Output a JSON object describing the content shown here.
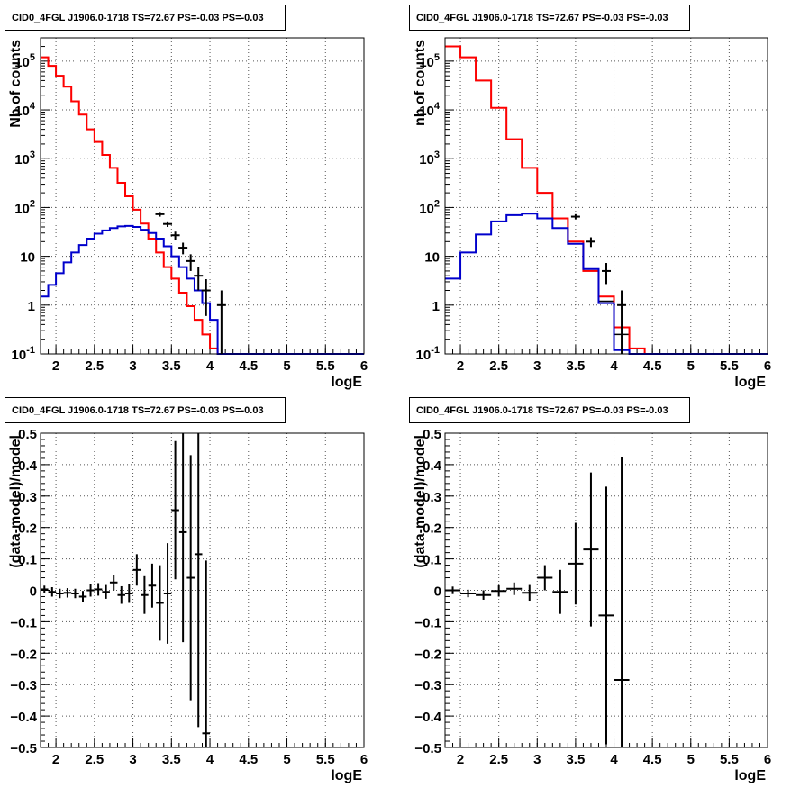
{
  "colors": {
    "data": "#000000",
    "total_model": "#ff0000",
    "component": "#0000cc",
    "grid": "#555555"
  },
  "chart_data": [
    {
      "type": "line",
      "title": "CID0_4FGL J1906.0-1718 TS=72.67 PS=-0.03 PS=-0.03",
      "xlabel": "logE",
      "ylabel": "Nb of counts",
      "log_y": true,
      "xlim": [
        1.8,
        6.0
      ],
      "ylim": [
        0.1,
        300000
      ],
      "grid": true,
      "x_ticks": [
        "2",
        "2.5",
        "3",
        "3.5",
        "4",
        "4.5",
        "5",
        "5.5",
        "6"
      ],
      "y_ticks": [
        "10^-1",
        "1",
        "10",
        "10^2",
        "10^3",
        "10^4",
        "10^5"
      ],
      "bin_edges": [
        1.8,
        1.9,
        2.0,
        2.1,
        2.2,
        2.3,
        2.4,
        2.5,
        2.6,
        2.7,
        2.8,
        2.9,
        3.0,
        3.1,
        3.2,
        3.3,
        3.4,
        3.5,
        3.6,
        3.7,
        3.8,
        3.9,
        4.0,
        4.1,
        4.2,
        4.3,
        4.4,
        4.5,
        4.6,
        4.7,
        4.8,
        4.9,
        5.0,
        5.1,
        5.2,
        5.3,
        5.4,
        5.5,
        5.6,
        5.7,
        5.8,
        5.9,
        6.0
      ],
      "series": [
        {
          "values": [
            120000,
            80000,
            50000,
            30000,
            15000,
            8000,
            4000,
            2200,
            1200,
            650,
            320,
            170,
            90,
            47,
            23,
            12,
            6,
            3.5,
            1.8,
            0.95,
            0.5,
            0.25,
            0.13,
            0.1,
            0.1,
            0.1,
            0.1,
            0.1,
            0.1,
            0.1,
            0.1,
            0.1,
            0.1,
            0.1,
            0.1,
            0.1,
            0.1,
            0.1,
            0.1,
            0.1,
            0.1,
            0.1
          ]
        },
        {
          "values": [
            120000,
            80000,
            50000,
            30000,
            15000,
            8000,
            4000,
            2200,
            1200,
            650,
            320,
            170,
            90,
            47,
            23,
            12,
            6,
            3.5,
            1.8,
            0.95,
            0.5,
            0.25,
            0.13,
            0.1,
            0.1,
            0.1,
            0.1,
            0.1,
            0.1,
            0.1,
            0.1,
            0.1,
            0.1,
            0.1,
            0.1,
            0.1,
            0.1,
            0.1,
            0.1,
            0.1,
            0.1,
            0.1
          ]
        },
        {
          "values": [
            1.5,
            2.6,
            4.5,
            7.5,
            12,
            17,
            23,
            29,
            34,
            38,
            41,
            42,
            40,
            35,
            30,
            23,
            16,
            10,
            6,
            3.5,
            2,
            1.1,
            0.5,
            0.1,
            0.1,
            0.1,
            0.1,
            0.1,
            0.1,
            0.1,
            0.1,
            0.1,
            0.1,
            0.1,
            0.1,
            0.1,
            0.1,
            0.1,
            0.1,
            0.1,
            0.1,
            0.1
          ]
        }
      ],
      "data_points": [
        {
          "x": 3.35,
          "y": 73,
          "yerr": [
            8,
            8
          ]
        },
        {
          "x": 3.45,
          "y": 46,
          "yerr": [
            6,
            6
          ]
        },
        {
          "x": 3.55,
          "y": 27,
          "yerr": [
            5,
            5
          ]
        },
        {
          "x": 3.65,
          "y": 15,
          "yerr": [
            4,
            4
          ]
        },
        {
          "x": 3.75,
          "y": 8,
          "yerr": [
            3,
            3
          ]
        },
        {
          "x": 3.85,
          "y": 4,
          "yerr": [
            2,
            2
          ]
        },
        {
          "x": 3.95,
          "y": 2,
          "yerr": [
            1.4,
            1.4
          ]
        },
        {
          "x": 4.15,
          "y": 1,
          "yerr": [
            0.9,
            1
          ]
        }
      ]
    },
    {
      "type": "line",
      "title": "CID0_4FGL J1906.0-1718 TS=72.67 PS=-0.03 PS=-0.03",
      "xlabel": "logE",
      "ylabel": "nb of counts",
      "log_y": true,
      "xlim": [
        1.8,
        6.0
      ],
      "ylim": [
        0.1,
        300000
      ],
      "grid": true,
      "x_ticks": [
        "2",
        "2.5",
        "3",
        "3.5",
        "4",
        "4.5",
        "5",
        "5.5",
        "6"
      ],
      "y_ticks": [
        "10^-1",
        "1",
        "10",
        "10^2",
        "10^3",
        "10^4",
        "10^5"
      ],
      "bin_edges": [
        1.8,
        2.0,
        2.2,
        2.4,
        2.6,
        2.8,
        3.0,
        3.2,
        3.4,
        3.6,
        3.8,
        4.0,
        4.2,
        4.4,
        4.6,
        4.8,
        5.0,
        5.2,
        5.4,
        5.6,
        5.8,
        6.0
      ],
      "series": [
        {
          "values": [
            200000,
            120000,
            40000,
            11000,
            2500,
            650,
            200,
            60,
            20,
            5,
            1.2,
            0.25,
            0.1,
            0.1,
            0.1,
            0.1,
            0.1,
            0.1,
            0.1,
            0.1,
            0.1
          ]
        },
        {
          "values": [
            200000,
            120000,
            40000,
            11000,
            2500,
            650,
            200,
            60,
            20,
            5,
            1.5,
            0.35,
            0.13,
            0.1,
            0.1,
            0.1,
            0.1,
            0.1,
            0.1,
            0.1,
            0.1
          ]
        },
        {
          "values": [
            3.5,
            12,
            28,
            52,
            70,
            75,
            60,
            38,
            18,
            5.5,
            1.1,
            0.12,
            0.1,
            0.1,
            0.1,
            0.1,
            0.1,
            0.1,
            0.1,
            0.1,
            0.1
          ]
        }
      ],
      "data_points": [
        {
          "x": 3.5,
          "y": 65,
          "yerr": [
            8,
            8
          ]
        },
        {
          "x": 3.7,
          "y": 20,
          "yerr": [
            4.5,
            4.5
          ]
        },
        {
          "x": 3.9,
          "y": 5,
          "yerr": [
            2.3,
            2.3
          ]
        },
        {
          "x": 4.1,
          "y": 1,
          "yerr": [
            0.9,
            1
          ]
        }
      ]
    },
    {
      "type": "scatter",
      "title": "CID0_4FGL J1906.0-1718 TS=72.67 PS=-0.03 PS=-0.03",
      "xlabel": "logE",
      "ylabel": "(data-model)/model",
      "xlim": [
        1.8,
        6.0
      ],
      "ylim": [
        -0.5,
        0.5
      ],
      "grid": true,
      "x_ticks": [
        "2",
        "2.5",
        "3",
        "3.5",
        "4",
        "4.5",
        "5",
        "5.5",
        "6"
      ],
      "y_ticks": [
        "-0.5",
        "-0.4",
        "-0.3",
        "-0.2",
        "-0.1",
        "0",
        "0.1",
        "0.2",
        "0.3",
        "0.4",
        "0.5"
      ],
      "points": [
        {
          "x": 1.85,
          "y": 0.003,
          "xerr": 0.05,
          "yerr": 0.012
        },
        {
          "x": 1.95,
          "y": -0.005,
          "xerr": 0.05,
          "yerr": 0.015
        },
        {
          "x": 2.05,
          "y": -0.01,
          "xerr": 0.05,
          "yerr": 0.015
        },
        {
          "x": 2.15,
          "y": -0.008,
          "xerr": 0.05,
          "yerr": 0.015
        },
        {
          "x": 2.25,
          "y": -0.01,
          "xerr": 0.05,
          "yerr": 0.015
        },
        {
          "x": 2.35,
          "y": -0.02,
          "xerr": 0.05,
          "yerr": 0.018
        },
        {
          "x": 2.45,
          "y": 0.0,
          "xerr": 0.05,
          "yerr": 0.02
        },
        {
          "x": 2.55,
          "y": 0.003,
          "xerr": 0.05,
          "yerr": 0.02
        },
        {
          "x": 2.65,
          "y": -0.005,
          "xerr": 0.05,
          "yerr": 0.022
        },
        {
          "x": 2.75,
          "y": 0.025,
          "xerr": 0.05,
          "yerr": 0.025
        },
        {
          "x": 2.85,
          "y": -0.015,
          "xerr": 0.05,
          "yerr": 0.028
        },
        {
          "x": 2.95,
          "y": -0.01,
          "xerr": 0.05,
          "yerr": 0.03
        },
        {
          "x": 3.05,
          "y": 0.065,
          "xerr": 0.05,
          "yerr": 0.05
        },
        {
          "x": 3.15,
          "y": -0.015,
          "xerr": 0.05,
          "yerr": 0.06
        },
        {
          "x": 3.25,
          "y": 0.015,
          "xerr": 0.05,
          "yerr": 0.07
        },
        {
          "x": 3.35,
          "y": -0.04,
          "xerr": 0.05,
          "yerr": 0.12
        },
        {
          "x": 3.45,
          "y": -0.01,
          "xerr": 0.05,
          "yerr": 0.16
        },
        {
          "x": 3.55,
          "y": 0.255,
          "xerr": 0.05,
          "yerr": 0.22
        },
        {
          "x": 3.65,
          "y": 0.185,
          "xerr": 0.05,
          "yerr": 0.35
        },
        {
          "x": 3.75,
          "y": 0.04,
          "xerr": 0.05,
          "yerr": 0.39
        },
        {
          "x": 3.85,
          "y": 0.115,
          "xerr": 0.05,
          "yerr": 0.55
        },
        {
          "x": 3.95,
          "y": -0.455,
          "xerr": 0.05,
          "yerr": 0.55
        }
      ]
    },
    {
      "type": "scatter",
      "title": "CID0_4FGL J1906.0-1718 TS=72.67 PS=-0.03 PS=-0.03",
      "xlabel": "logE",
      "ylabel": "(data-model)/model",
      "xlim": [
        1.8,
        6.0
      ],
      "ylim": [
        -0.5,
        0.5
      ],
      "grid": true,
      "x_ticks": [
        "2",
        "2.5",
        "3",
        "3.5",
        "4",
        "4.5",
        "5",
        "5.5",
        "6"
      ],
      "y_ticks": [
        "-0.5",
        "-0.4",
        "-0.3",
        "-0.2",
        "-0.1",
        "0",
        "0.1",
        "0.2",
        "0.3",
        "0.4",
        "0.5"
      ],
      "points": [
        {
          "x": 1.9,
          "y": 0.0,
          "xerr": 0.1,
          "yerr": 0.012
        },
        {
          "x": 2.1,
          "y": -0.01,
          "xerr": 0.1,
          "yerr": 0.012
        },
        {
          "x": 2.3,
          "y": -0.015,
          "xerr": 0.1,
          "yerr": 0.015
        },
        {
          "x": 2.5,
          "y": -0.002,
          "xerr": 0.1,
          "yerr": 0.018
        },
        {
          "x": 2.7,
          "y": 0.005,
          "xerr": 0.1,
          "yerr": 0.02
        },
        {
          "x": 2.9,
          "y": -0.008,
          "xerr": 0.1,
          "yerr": 0.025
        },
        {
          "x": 3.1,
          "y": 0.04,
          "xerr": 0.1,
          "yerr": 0.04
        },
        {
          "x": 3.3,
          "y": -0.005,
          "xerr": 0.1,
          "yerr": 0.07
        },
        {
          "x": 3.5,
          "y": 0.085,
          "xerr": 0.1,
          "yerr": 0.13
        },
        {
          "x": 3.7,
          "y": 0.13,
          "xerr": 0.1,
          "yerr": 0.245
        },
        {
          "x": 3.9,
          "y": -0.08,
          "xerr": 0.1,
          "yerr": 0.41
        },
        {
          "x": 4.1,
          "y": -0.285,
          "xerr": 0.1,
          "yerr": 0.71
        }
      ]
    }
  ]
}
